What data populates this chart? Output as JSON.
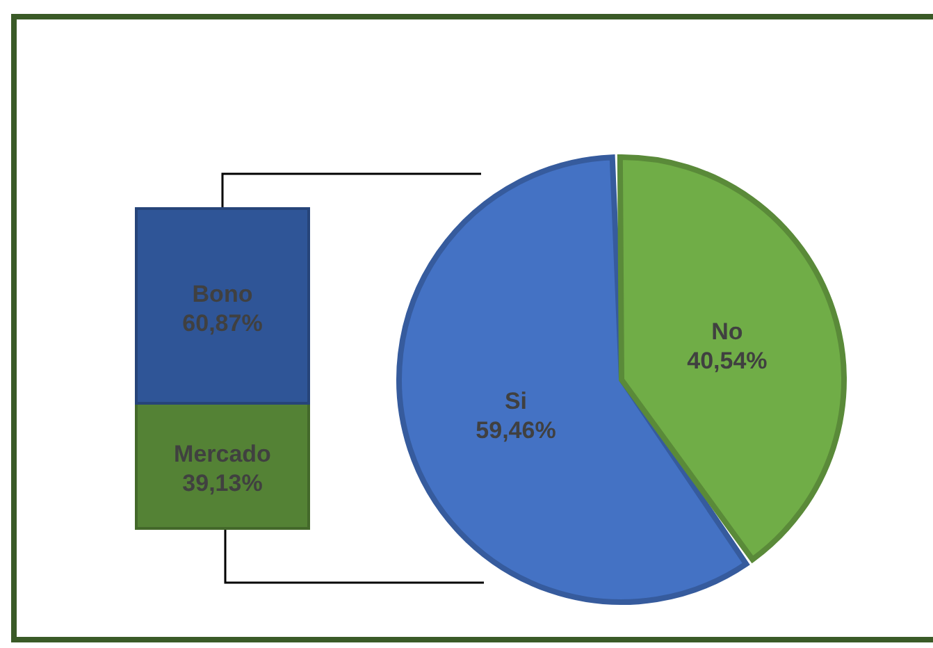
{
  "chart_data": [
    {
      "type": "pie",
      "categories": [
        "Si",
        "No"
      ],
      "values": [
        59.46,
        40.54
      ],
      "colors": [
        "#4472c4",
        "#70ad47"
      ],
      "value_labels": [
        "59,46%",
        "40,54%"
      ]
    },
    {
      "type": "bar",
      "stacked": true,
      "categories": [
        null
      ],
      "series": [
        {
          "name": "Mercado",
          "color": "#548235",
          "values": [
            39.13
          ],
          "value_labels": [
            "39,13%"
          ]
        },
        {
          "name": "Bono",
          "color": "#2f5597",
          "values": [
            60.87
          ],
          "value_labels": [
            "60,87%"
          ]
        }
      ]
    }
  ]
}
